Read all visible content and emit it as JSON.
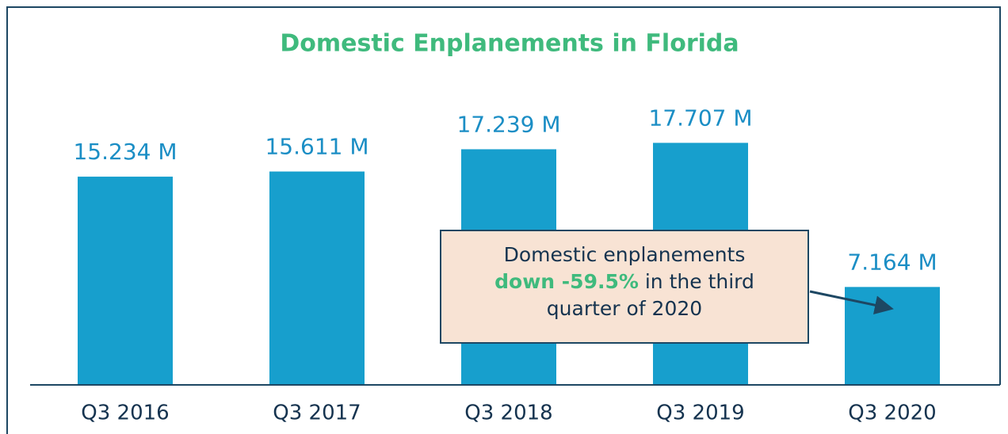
{
  "chart_data": {
    "type": "bar",
    "title": "Domestic Enplanements in Florida",
    "categories": [
      "Q3 2016",
      "Q3 2017",
      "Q3 2018",
      "Q3 2019",
      "Q3 2020"
    ],
    "values": [
      15.234,
      15.611,
      17.239,
      17.707,
      7.164
    ],
    "value_labels": [
      "15.234 M",
      "15.611 M",
      "17.239 M",
      "17.707 M",
      "7.164 M"
    ],
    "color": "#179fcd",
    "annotation": {
      "line1": "Domestic enplanements",
      "highlight": "down -59.5%",
      "line2": "in the third",
      "line3": "quarter of 2020"
    }
  }
}
